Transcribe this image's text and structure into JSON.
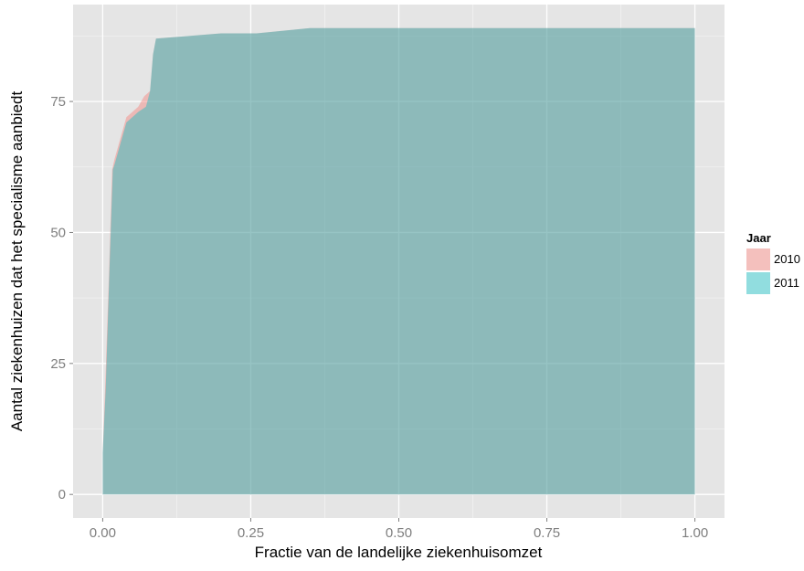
{
  "chart_data": {
    "type": "area",
    "xlabel": "Fractie van de landelijke ziekenhuisomzet",
    "ylabel": "Aantal ziekenhuizen dat het specialisme aanbiedt",
    "xlim": [
      -0.05,
      1.05
    ],
    "ylim": [
      -4.5,
      93.5
    ],
    "x_ticks": [
      0.0,
      0.25,
      0.5,
      0.75,
      1.0
    ],
    "x_tick_labels": [
      "0.00",
      "0.25",
      "0.50",
      "0.75",
      "1.00"
    ],
    "y_ticks": [
      0,
      25,
      50,
      75
    ],
    "y_tick_labels": [
      "0",
      "25",
      "50",
      "75"
    ],
    "grid": true,
    "legend": {
      "title": "Jaar",
      "position": "right",
      "entries": [
        "2010",
        "2011"
      ]
    },
    "series": [
      {
        "name": "2010",
        "color": "#F8766D",
        "points": [
          [
            0.0,
            0
          ],
          [
            0.0,
            8
          ],
          [
            0.004,
            20
          ],
          [
            0.01,
            40
          ],
          [
            0.016,
            62
          ],
          [
            0.02,
            64
          ],
          [
            0.04,
            72
          ],
          [
            0.06,
            74
          ],
          [
            0.07,
            76
          ],
          [
            0.08,
            77
          ],
          [
            0.085,
            84
          ],
          [
            0.09,
            87
          ],
          [
            0.2,
            88
          ],
          [
            0.26,
            88
          ],
          [
            0.35,
            89
          ],
          [
            1.0,
            89
          ],
          [
            1.0,
            0
          ]
        ]
      },
      {
        "name": "2011",
        "color": "#00BFC4",
        "points": [
          [
            0.0,
            0
          ],
          [
            0.0,
            8
          ],
          [
            0.005,
            20
          ],
          [
            0.012,
            45
          ],
          [
            0.017,
            62
          ],
          [
            0.02,
            63
          ],
          [
            0.04,
            71
          ],
          [
            0.06,
            73
          ],
          [
            0.073,
            74
          ],
          [
            0.08,
            77
          ],
          [
            0.085,
            84
          ],
          [
            0.09,
            87
          ],
          [
            0.2,
            88
          ],
          [
            0.26,
            88
          ],
          [
            0.35,
            89
          ],
          [
            1.0,
            89
          ],
          [
            1.0,
            0
          ]
        ]
      }
    ]
  }
}
